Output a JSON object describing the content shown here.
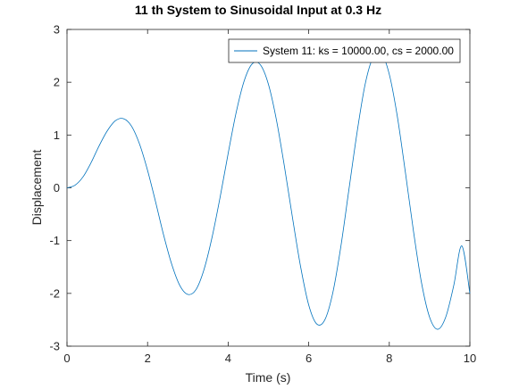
{
  "chart_data": {
    "type": "line",
    "title": "11 th System to Sinusoidal Input at 0.3 Hz",
    "xlabel": "Time (s)",
    "ylabel": "Displacement",
    "xlim": [
      0,
      10
    ],
    "ylim": [
      -3,
      3
    ],
    "xticks": [
      0,
      2,
      4,
      6,
      8,
      10
    ],
    "yticks": [
      -3,
      -2,
      -1,
      0,
      1,
      2,
      3
    ],
    "xtick_labels": [
      "0",
      "2",
      "4",
      "6",
      "8",
      "10"
    ],
    "ytick_labels": [
      "-3",
      "-2",
      "-1",
      "0",
      "1",
      "2",
      "3"
    ],
    "grid": false,
    "legend_position": "top-right",
    "series": [
      {
        "name": "System 11: ks = 10000.00, cs = 2000.00",
        "color": "#0072bd",
        "x": [
          0,
          0.2,
          0.4,
          0.6,
          0.8,
          1.0,
          1.2,
          1.4,
          1.6,
          1.8,
          2.0,
          2.2,
          2.4,
          2.6,
          2.8,
          3.0,
          3.2,
          3.4,
          3.6,
          3.8,
          4.0,
          4.2,
          4.4,
          4.6,
          4.8,
          5.0,
          5.2,
          5.4,
          5.6,
          5.8,
          6.0,
          6.2,
          6.4,
          6.6,
          6.8,
          7.0,
          7.2,
          7.4,
          7.6,
          7.8,
          8.0,
          8.2,
          8.4,
          8.6,
          8.8,
          9.0,
          9.2,
          9.4,
          9.6,
          9.8,
          10.0
        ],
        "y": [
          0,
          0.05,
          0.21,
          0.48,
          0.8,
          1.08,
          1.27,
          1.31,
          1.17,
          0.83,
          0.33,
          -0.27,
          -0.9,
          -1.45,
          -1.85,
          -2.02,
          -1.93,
          -1.55,
          -0.94,
          -0.18,
          0.65,
          1.43,
          2.03,
          2.35,
          2.33,
          1.96,
          1.28,
          0.39,
          -0.58,
          -1.5,
          -2.22,
          -2.58,
          -2.5,
          -1.98,
          -1.1,
          -0.02,
          1.05,
          1.96,
          2.48,
          2.55,
          2.15,
          1.35,
          0.29,
          -0.82,
          -1.8,
          -2.45,
          -2.68,
          -2.45,
          -1.85,
          -1.1,
          -2.0
        ]
      }
    ]
  }
}
